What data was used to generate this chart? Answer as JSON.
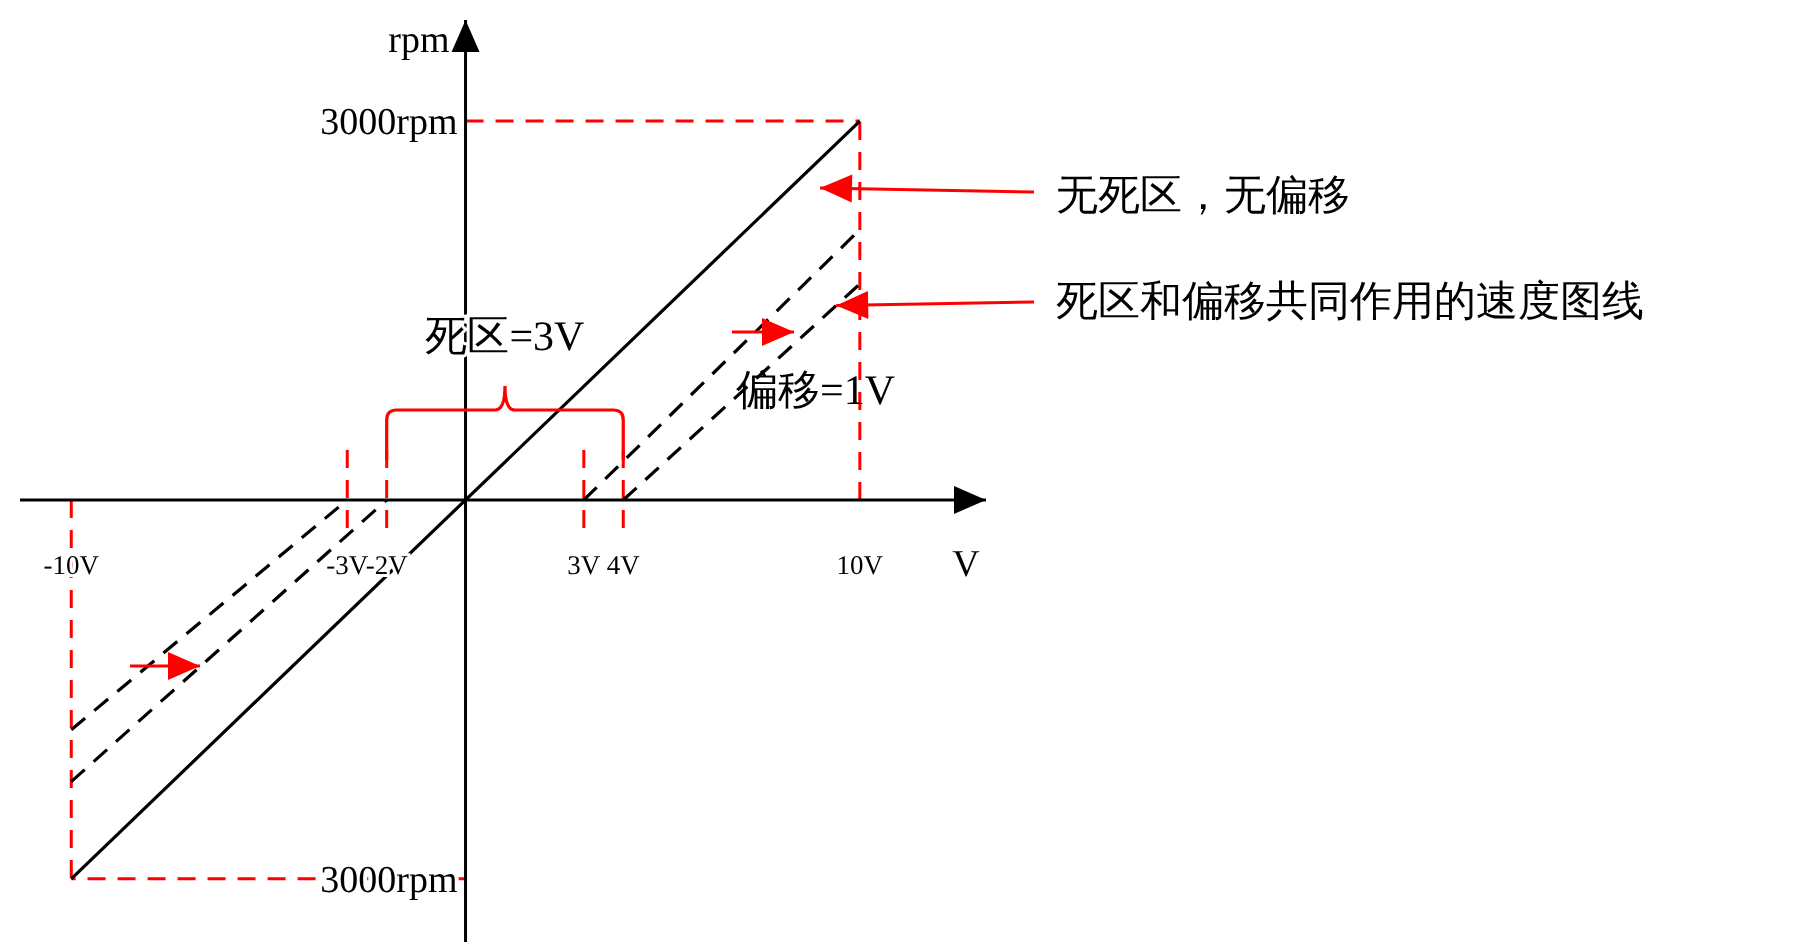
{
  "chart_data": {
    "type": "line",
    "xlabel": "V",
    "ylabel": "rpm",
    "xlim": [
      -11.3,
      13.2
    ],
    "ylim": [
      -3500,
      3800
    ],
    "xticks": [
      {
        "value": -10,
        "label": "-10V"
      },
      {
        "value": -3,
        "label": "-3V"
      },
      {
        "value": -2,
        "label": "-2V"
      },
      {
        "value": 3,
        "label": "3V"
      },
      {
        "value": 4,
        "label": "4V"
      },
      {
        "value": 10,
        "label": "10V"
      }
    ],
    "yticks": [
      {
        "value": 3000,
        "label": "3000rpm"
      },
      {
        "value": -3000,
        "label": "3000rpm"
      }
    ],
    "series": [
      {
        "color": "#000000",
        "line_style": "solid",
        "x": [
          -10,
          10
        ],
        "values": [
          -3000,
          3000
        ]
      },
      {
        "color": "#000000",
        "line_style": "dashed",
        "x": [
          -10,
          -3
        ],
        "values": [
          -1820,
          0
        ]
      },
      {
        "color": "#000000",
        "line_style": "dashed",
        "x": [
          3,
          10
        ],
        "values": [
          0,
          2140
        ]
      },
      {
        "color": "#000000",
        "line_style": "dashed",
        "x": [
          -10,
          -2
        ],
        "values": [
          -2230,
          0
        ]
      },
      {
        "color": "#000000",
        "line_style": "dashed",
        "x": [
          4,
          10
        ],
        "values": [
          0,
          1710
        ]
      }
    ],
    "ref_lines": [
      {
        "axis": "x",
        "value": -3,
        "color": "#ff0000",
        "line_style": "dashed"
      },
      {
        "axis": "x",
        "value": -2,
        "color": "#ff0000",
        "line_style": "dashed"
      },
      {
        "axis": "x",
        "value": 3,
        "color": "#ff0000",
        "line_style": "dashed"
      },
      {
        "axis": "x",
        "value": 4,
        "color": "#ff0000",
        "line_style": "dashed"
      },
      {
        "axis": "x",
        "value": 10,
        "color": "#ff0000",
        "line_style": "dashed"
      },
      {
        "axis": "x",
        "value": -10,
        "color": "#ff0000",
        "line_style": "dashed"
      },
      {
        "axis": "y",
        "value": 3000,
        "color": "#ff0000",
        "line_style": "dashed"
      },
      {
        "axis": "y",
        "value": -3000,
        "color": "#ff0000",
        "line_style": "dashed"
      }
    ],
    "annotations": [
      "无死区，无偏移",
      {
        "text": "死区和偏移共同作用的速度图线",
        "x": 9.4,
        "y": 1540
      },
      "死区=3V",
      "偏移=1V"
    ],
    "grid": false
  }
}
